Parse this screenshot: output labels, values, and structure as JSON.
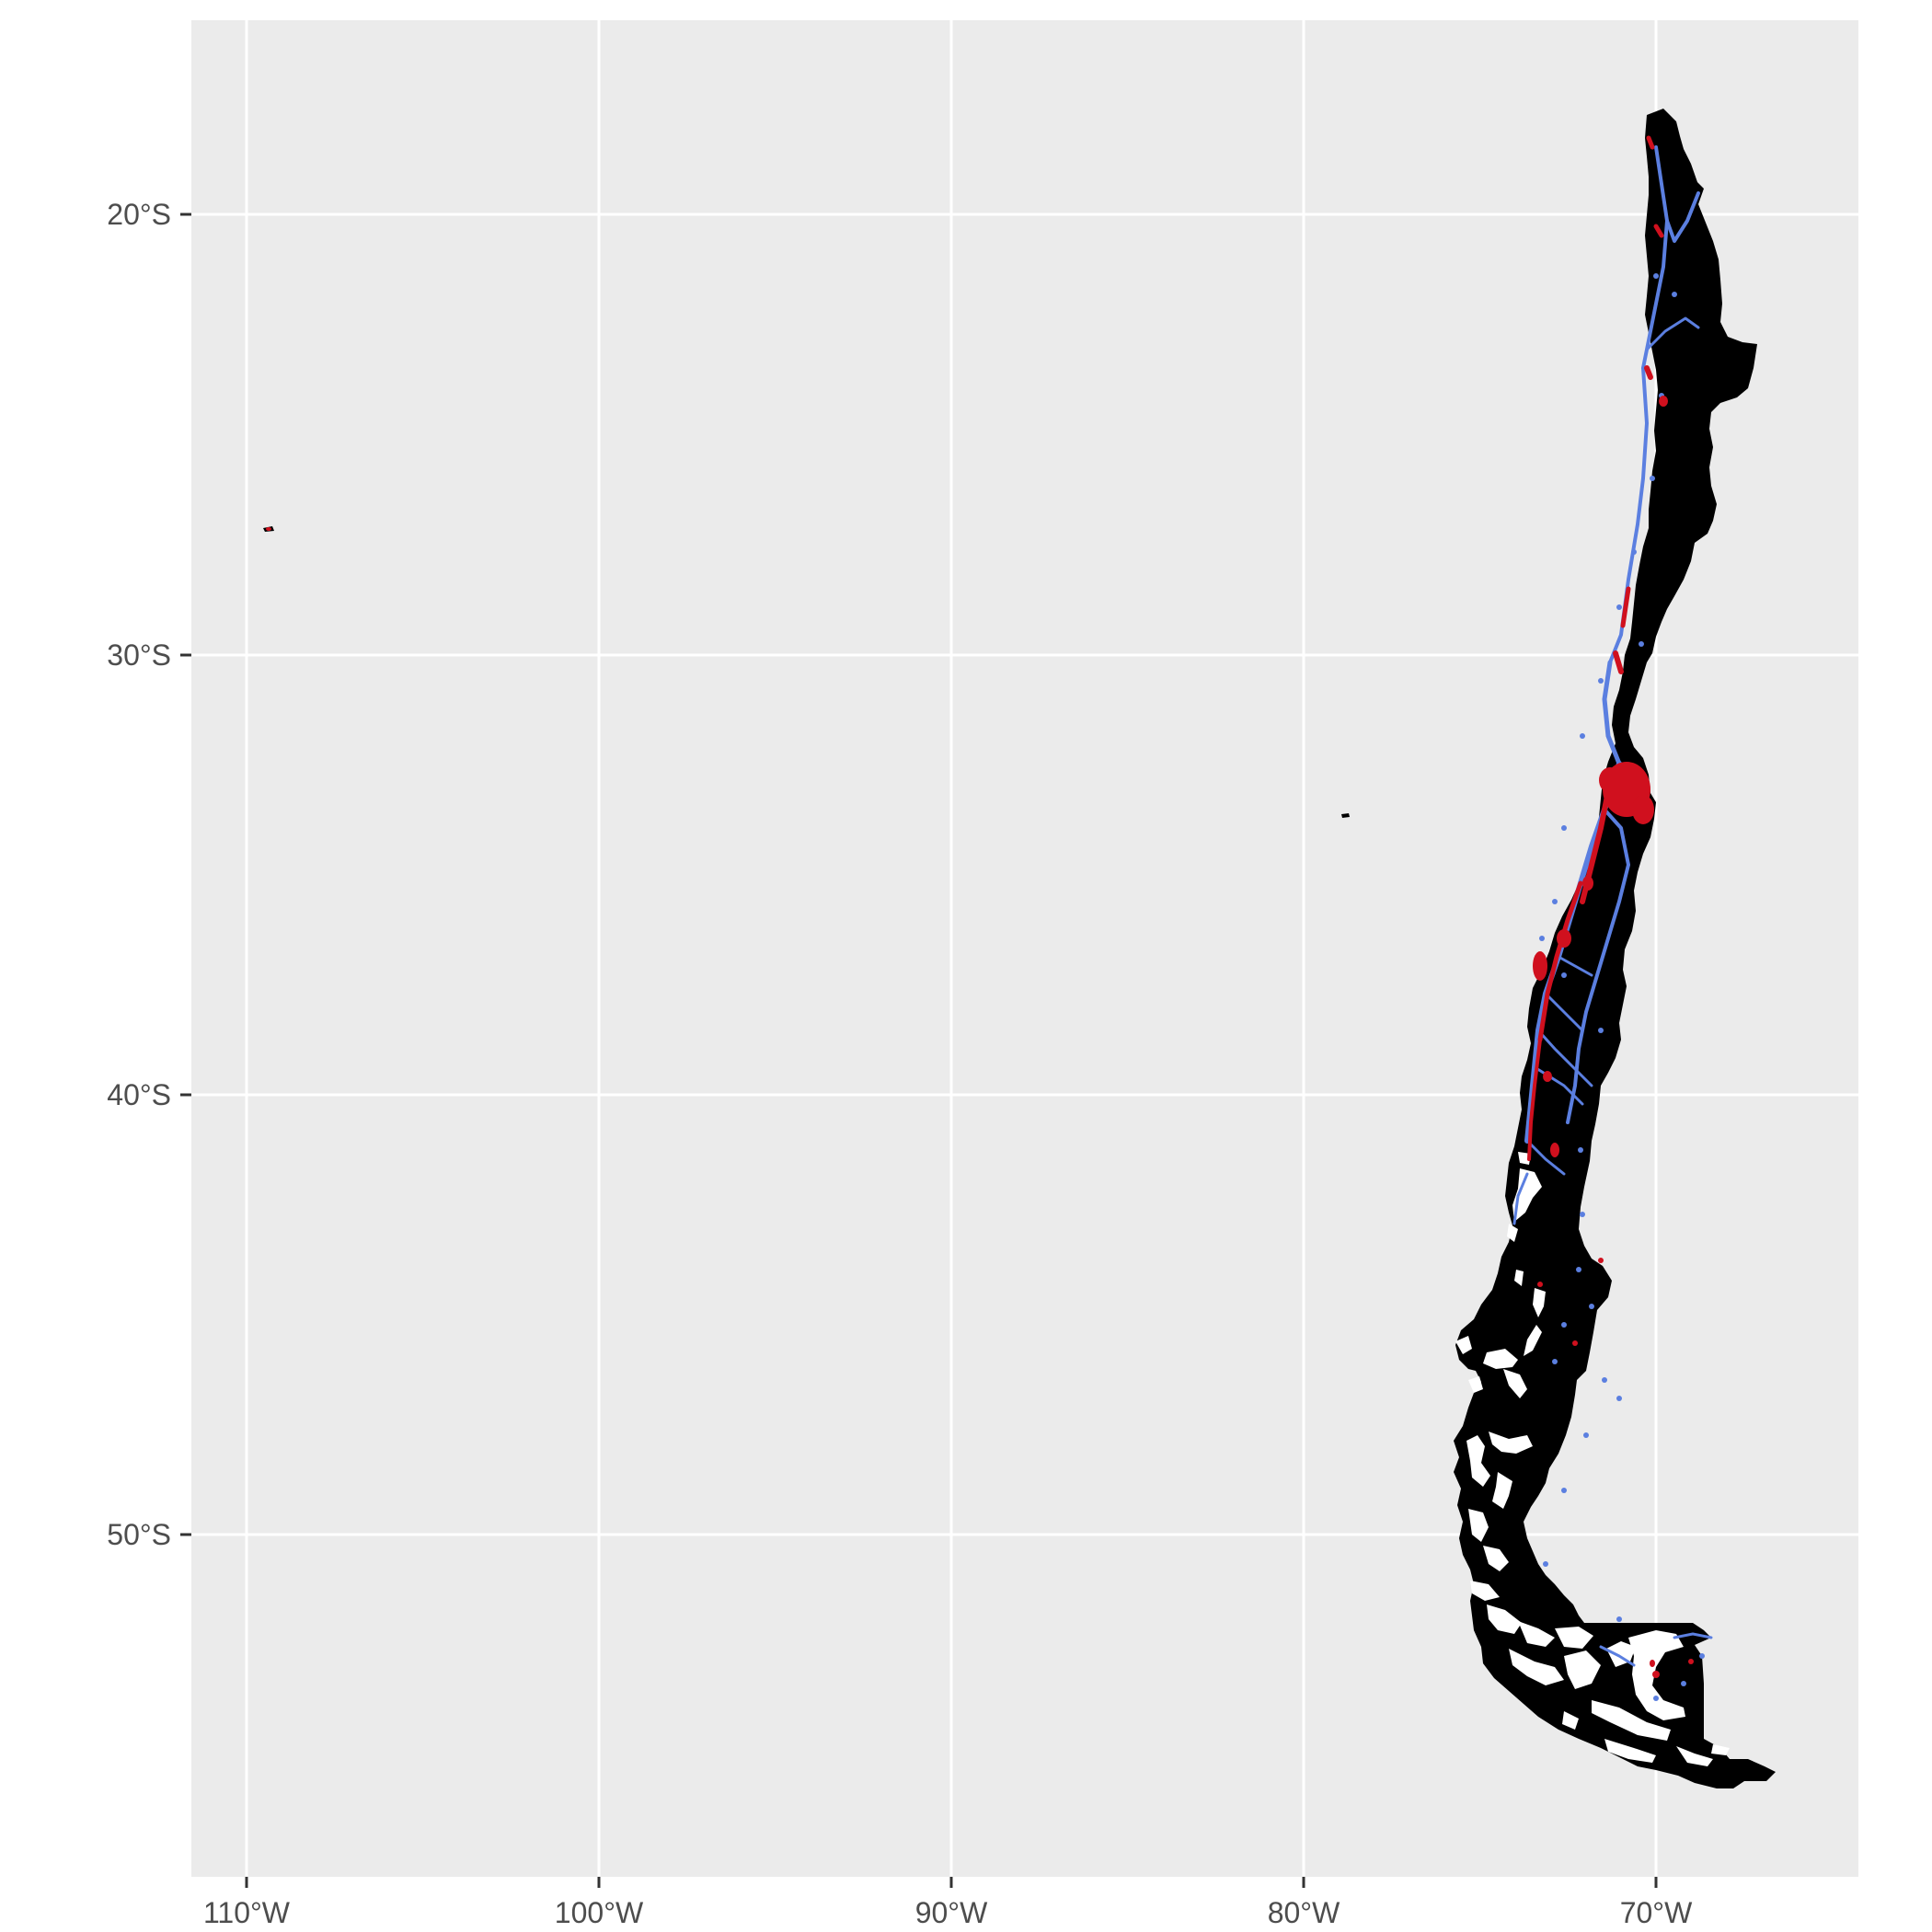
{
  "map": {
    "panel_background": "#ebebeb",
    "grid_color": "#ffffff",
    "land_color": "#000000",
    "water_cut_color": "#ffffff",
    "light_color": "#5b7fe0",
    "urban_color": "#d0101e",
    "x_axis": {
      "labels": [
        "110°W",
        "100°W",
        "90°W",
        "80°W",
        "70°W"
      ]
    },
    "y_axis": {
      "labels": [
        "20°S",
        "30°S",
        "40°S",
        "50°S"
      ]
    }
  }
}
